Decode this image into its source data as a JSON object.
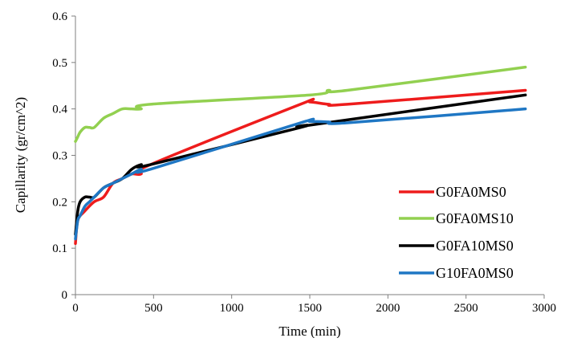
{
  "chart_data": {
    "type": "line",
    "title": "",
    "xlabel": "Time (min)",
    "ylabel": "Capillarity  (gr/cm^2)",
    "xlim": [
      0,
      3000
    ],
    "ylim": [
      0,
      0.6
    ],
    "x_ticks": [
      0,
      500,
      1000,
      1500,
      2000,
      2500,
      3000
    ],
    "y_ticks": [
      0,
      0.1,
      0.2,
      0.3,
      0.4,
      0.5,
      0.6
    ],
    "x_tick_labels": [
      "0",
      "500",
      "1000",
      "1500",
      "2000",
      "2500",
      "3000"
    ],
    "y_tick_labels": [
      "0",
      "0.1",
      "0.2",
      "0.3",
      "0.4",
      "0.5",
      "0.6"
    ],
    "grid": false,
    "legend_position": "bottom-right",
    "series": [
      {
        "name": "G0FA0MS0",
        "color": "#ee1c1c",
        "points": [
          [
            0,
            0.11
          ],
          [
            15,
            0.16
          ],
          [
            60,
            0.18
          ],
          [
            120,
            0.2
          ],
          [
            180,
            0.21
          ],
          [
            240,
            0.24
          ],
          [
            300,
            0.25
          ],
          [
            360,
            0.26
          ],
          [
            420,
            0.26
          ],
          [
            480,
            0.28
          ],
          [
            1440,
            0.41
          ],
          [
            1500,
            0.415
          ],
          [
            1620,
            0.41
          ],
          [
            1740,
            0.41
          ],
          [
            2880,
            0.44
          ]
        ]
      },
      {
        "name": "G0FA0MS10",
        "color": "#92d050",
        "points": [
          [
            0,
            0.33
          ],
          [
            15,
            0.34
          ],
          [
            30,
            0.35
          ],
          [
            60,
            0.36
          ],
          [
            90,
            0.36
          ],
          [
            120,
            0.36
          ],
          [
            180,
            0.38
          ],
          [
            240,
            0.39
          ],
          [
            300,
            0.4
          ],
          [
            360,
            0.4
          ],
          [
            420,
            0.4
          ],
          [
            480,
            0.41
          ],
          [
            1500,
            0.43
          ],
          [
            1620,
            0.44
          ],
          [
            1740,
            0.44
          ],
          [
            2880,
            0.49
          ]
        ]
      },
      {
        "name": "G0FA10MS0",
        "color": "#000000",
        "points": [
          [
            0,
            0.13
          ],
          [
            15,
            0.18
          ],
          [
            30,
            0.2
          ],
          [
            60,
            0.21
          ],
          [
            90,
            0.21
          ],
          [
            120,
            0.21
          ],
          [
            180,
            0.23
          ],
          [
            240,
            0.24
          ],
          [
            300,
            0.25
          ],
          [
            360,
            0.27
          ],
          [
            420,
            0.28
          ],
          [
            480,
            0.28
          ],
          [
            1440,
            0.36
          ],
          [
            1500,
            0.365
          ],
          [
            2880,
            0.43
          ]
        ]
      },
      {
        "name": "G10FA0MS0",
        "color": "#1f77c4",
        "points": [
          [
            0,
            0.12
          ],
          [
            15,
            0.16
          ],
          [
            30,
            0.17
          ],
          [
            60,
            0.19
          ],
          [
            90,
            0.2
          ],
          [
            120,
            0.21
          ],
          [
            180,
            0.23
          ],
          [
            240,
            0.24
          ],
          [
            300,
            0.25
          ],
          [
            360,
            0.26
          ],
          [
            420,
            0.27
          ],
          [
            480,
            0.27
          ],
          [
            1440,
            0.37
          ],
          [
            1500,
            0.373
          ],
          [
            1620,
            0.372
          ],
          [
            1740,
            0.37
          ],
          [
            2880,
            0.4
          ]
        ]
      }
    ]
  }
}
